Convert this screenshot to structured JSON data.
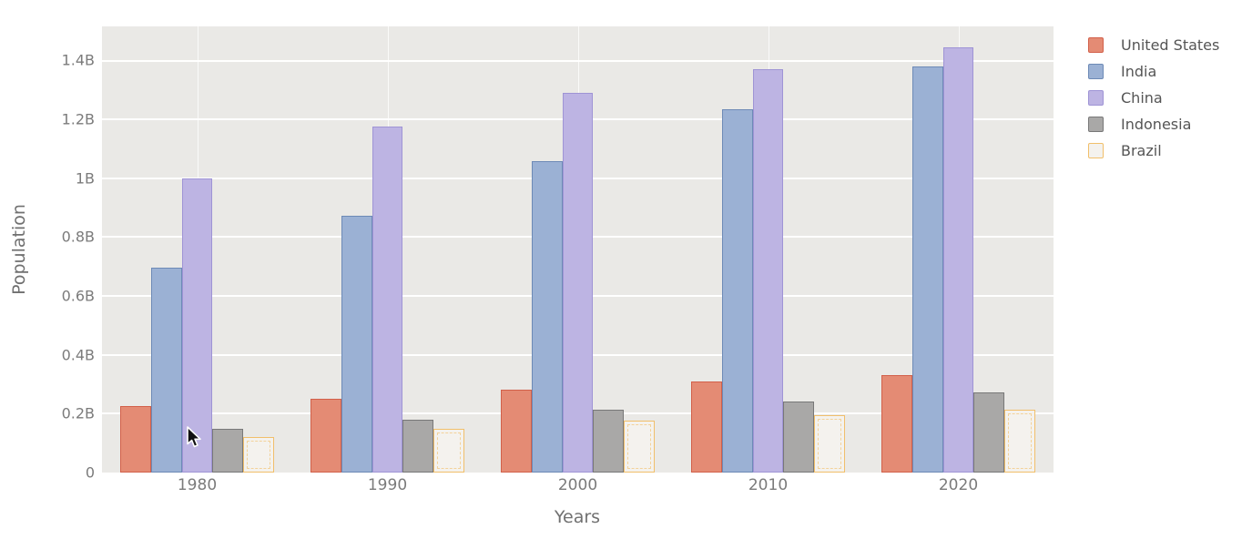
{
  "figure": {
    "background": "#ffffff",
    "plot_background": "#eae9e6",
    "grid_color": "#ffffff",
    "tick_text_color": "#7b7b7b",
    "axis_title_color": "#707070",
    "legend_text_color": "#555555"
  },
  "chart_data": {
    "type": "bar",
    "title": "",
    "xlabel": "Years",
    "ylabel": "Population",
    "grid": true,
    "legend_position": "right",
    "ylim": [
      0,
      1.516
    ],
    "yticks": [
      {
        "v": 0,
        "label": "0"
      },
      {
        "v": 0.2,
        "label": "0.2B"
      },
      {
        "v": 0.4,
        "label": "0.4B"
      },
      {
        "v": 0.6,
        "label": "0.6B"
      },
      {
        "v": 0.8,
        "label": "0.8B"
      },
      {
        "v": 1.0,
        "label": "1B"
      },
      {
        "v": 1.2,
        "label": "1.2B"
      },
      {
        "v": 1.4,
        "label": "1.4B"
      }
    ],
    "categories": [
      "1980",
      "1990",
      "2000",
      "2010",
      "2020"
    ],
    "series": [
      {
        "name": "United States",
        "fill": "#e48b74",
        "stroke": "#d2604a",
        "values": [
          0.227,
          0.25,
          0.282,
          0.309,
          0.331
        ]
      },
      {
        "name": "India",
        "fill": "#9bb1d4",
        "stroke": "#6d8ab6",
        "values": [
          0.697,
          0.873,
          1.057,
          1.234,
          1.38
        ]
      },
      {
        "name": "China",
        "fill": "#bdb4e3",
        "stroke": "#9f94d5",
        "values": [
          1.0,
          1.177,
          1.29,
          1.371,
          1.444
        ]
      },
      {
        "name": "Indonesia",
        "fill": "#a9a8a7",
        "stroke": "#787878",
        "values": [
          0.148,
          0.181,
          0.214,
          0.242,
          0.271
        ]
      },
      {
        "name": "Brazil",
        "fill": "#f4f2ee",
        "stroke": "#f1bf6b",
        "pattern": "dashed",
        "pattern_color": "#f3cd8c",
        "values": [
          0.122,
          0.149,
          0.175,
          0.196,
          0.213
        ]
      }
    ]
  }
}
